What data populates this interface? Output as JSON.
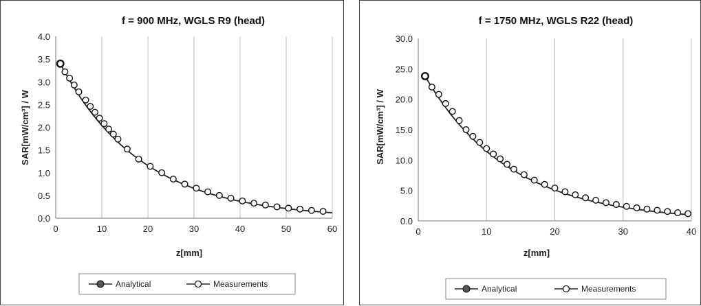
{
  "chart_data": [
    {
      "type": "line",
      "title": "f = 900 MHz, WGLS R9 (head)",
      "xlabel": "z[mm]",
      "ylabel": "SAR[mW/cm³] / W",
      "xlim": [
        0,
        60
      ],
      "ylim": [
        0,
        4.0
      ],
      "xticks": [
        "0",
        "10",
        "20",
        "30",
        "40",
        "50",
        "60"
      ],
      "yticks": [
        "0.0",
        "0.5",
        "1.0",
        "1.5",
        "2.0",
        "2.5",
        "3.0",
        "3.5",
        "4.0"
      ],
      "grid": "vertical",
      "legend_position": "bottom",
      "series": [
        {
          "name": "Analytical",
          "x": [
            1,
            60
          ],
          "y": [
            3.4,
            0.12
          ]
        },
        {
          "name": "Measurements",
          "x": [
            1,
            2,
            3,
            4,
            5,
            6.5,
            7.5,
            8.5,
            9.5,
            10.5,
            11.5,
            12.5,
            13.5,
            15.5,
            18,
            20.5,
            23,
            25.5,
            28,
            30.5,
            33,
            35.5,
            38,
            40.5,
            43,
            45.5,
            48,
            50.5,
            53,
            55.5,
            58
          ],
          "y": [
            3.4,
            3.22,
            3.08,
            2.93,
            2.78,
            2.6,
            2.46,
            2.33,
            2.2,
            2.08,
            1.96,
            1.85,
            1.74,
            1.52,
            1.3,
            1.14,
            1.0,
            0.86,
            0.75,
            0.66,
            0.58,
            0.5,
            0.44,
            0.38,
            0.33,
            0.29,
            0.25,
            0.22,
            0.2,
            0.17,
            0.15
          ]
        }
      ]
    },
    {
      "type": "line",
      "title": "f = 1750 MHz, WGLS R22 (head)",
      "xlabel": "z[mm]",
      "ylabel": "SAR[mW/cm³] / W",
      "xlim": [
        0,
        40
      ],
      "ylim": [
        0,
        30.0
      ],
      "xticks": [
        "0",
        "10",
        "20",
        "30",
        "40"
      ],
      "yticks": [
        "0.0",
        "5.0",
        "10.0",
        "15.0",
        "20.0",
        "25.0",
        "30.0"
      ],
      "grid": "vertical",
      "legend_position": "bottom",
      "series": [
        {
          "name": "Analytical",
          "x": [
            1,
            40
          ],
          "y": [
            23.8,
            1.0
          ]
        },
        {
          "name": "Measurements",
          "x": [
            1,
            2,
            3,
            4,
            5,
            6,
            7,
            8,
            9,
            10,
            11,
            12,
            13,
            14,
            15.5,
            17,
            18.5,
            20,
            21.5,
            23,
            24.5,
            26,
            27.5,
            29,
            30.5,
            32,
            33.5,
            35,
            36.5,
            38,
            39.5
          ],
          "y": [
            23.8,
            22.0,
            20.8,
            19.3,
            18.0,
            16.5,
            15.0,
            13.9,
            12.9,
            11.9,
            11.0,
            10.2,
            9.3,
            8.5,
            7.6,
            6.7,
            6.0,
            5.4,
            4.8,
            4.3,
            3.8,
            3.4,
            3.0,
            2.7,
            2.4,
            2.15,
            1.95,
            1.75,
            1.55,
            1.35,
            1.2
          ]
        }
      ]
    }
  ]
}
